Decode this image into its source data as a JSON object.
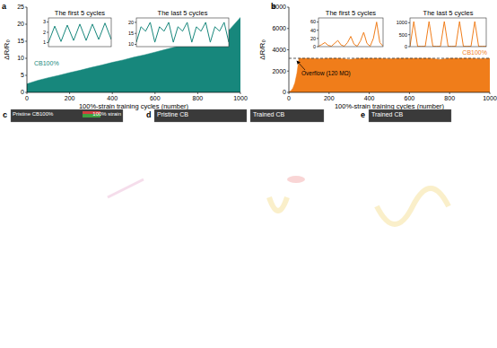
{
  "chart_data": [
    {
      "panel": "a",
      "type": "area",
      "x_label": "100%-strain training cycles (number)",
      "y_label": "ΔR/R₀",
      "series": [
        {
          "name": "CB100%",
          "color": "#17877c",
          "x": [
            0,
            50,
            100,
            150,
            200,
            250,
            300,
            350,
            400,
            450,
            500,
            550,
            600,
            650,
            700,
            750,
            800,
            850,
            900,
            950,
            1000
          ],
          "values": [
            2.5,
            3.5,
            4.3,
            5,
            5.8,
            6.5,
            7.3,
            8,
            8.8,
            9.5,
            10.3,
            11,
            11.8,
            12.6,
            13.4,
            14.2,
            15,
            16,
            17,
            18.5,
            22
          ]
        }
      ],
      "xlim": [
        0,
        1000
      ],
      "xticks": [
        0,
        200,
        400,
        600,
        800,
        1000
      ],
      "ylim": [
        0,
        25
      ],
      "yticks": [
        0,
        5,
        10,
        15,
        20,
        25
      ],
      "legend": "left"
    },
    {
      "type": "line",
      "title": "The first 5 cycles",
      "series": [
        {
          "color": "#17877c",
          "x": [
            0,
            0.5,
            1,
            1.5,
            2,
            2.5,
            3,
            3.5,
            4,
            4.5,
            5
          ],
          "values": [
            1.0,
            2.6,
            1.1,
            2.7,
            1.2,
            2.8,
            1.2,
            2.8,
            1.3,
            2.9,
            1.3
          ]
        }
      ],
      "xlim": [
        0,
        5
      ],
      "ylim": [
        0.6,
        3.4
      ],
      "yticks": [
        1,
        2,
        3
      ],
      "tick_labels": "y"
    },
    {
      "type": "line",
      "title": "The last 5 cycles",
      "series": [
        {
          "color": "#17877c",
          "x": [
            0,
            0.25,
            0.5,
            0.75,
            1,
            1.25,
            1.5,
            1.75,
            2,
            2.25,
            2.5,
            2.75,
            3,
            3.25,
            3.5,
            3.75,
            4,
            4.25,
            4.5,
            4.75,
            5
          ],
          "values": [
            11,
            18,
            16,
            20,
            11,
            18,
            16,
            20,
            11,
            18,
            16,
            20,
            11,
            18,
            16,
            20,
            11,
            18,
            16,
            20,
            11
          ]
        }
      ],
      "xlim": [
        0,
        5
      ],
      "ylim": [
        9,
        22
      ],
      "yticks": [
        10,
        15,
        20
      ],
      "tick_labels": "y"
    },
    {
      "panel": "b",
      "type": "area",
      "x_label": "100%-strain training cycles (number)",
      "y_label": "ΔR/R₀",
      "series": [
        {
          "name": "CB100%",
          "color": "#f07d1a",
          "x": [
            0,
            10,
            20,
            30,
            40,
            50,
            100,
            150,
            200,
            250,
            300,
            350,
            400,
            450,
            500,
            550,
            600,
            650,
            700,
            750,
            800,
            850,
            900,
            950,
            1000
          ],
          "values": [
            50,
            150,
            400,
            900,
            1800,
            3200,
            3200,
            3150,
            3200,
            3200,
            3100,
            3200,
            3200,
            3200,
            3150,
            3200,
            3200,
            3200,
            3200,
            3100,
            3200,
            3200,
            3200,
            3150,
            3200
          ]
        }
      ],
      "xlim": [
        0,
        1000
      ],
      "xticks": [
        0,
        200,
        400,
        600,
        800,
        1000
      ],
      "ylim": [
        0,
        8000
      ],
      "yticks": [
        0,
        2000,
        4000,
        6000,
        8000
      ],
      "legend": "right",
      "annotations": [
        {
          "text": "Overflow (120 MΩ)",
          "y": 3200
        }
      ]
    },
    {
      "type": "line",
      "title": "The first 5 cycles",
      "series": [
        {
          "color": "#f07d1a",
          "x": [
            0,
            0.25,
            0.5,
            0.75,
            1,
            1.25,
            1.5,
            1.75,
            2,
            2.25,
            2.5,
            2.75,
            3,
            3.25,
            3.5,
            3.75,
            4,
            4.25,
            4.5,
            4.75,
            5
          ],
          "values": [
            1,
            5,
            10,
            3,
            1,
            8,
            15,
            4,
            1,
            10,
            25,
            6,
            1,
            14,
            35,
            8,
            1,
            20,
            60,
            10,
            1
          ]
        }
      ],
      "xlim": [
        0,
        5
      ],
      "ylim": [
        0,
        70
      ],
      "yticks": [
        0,
        20,
        40,
        60
      ],
      "tick_labels": "y"
    },
    {
      "type": "line",
      "title": "The last 5 cycles",
      "series": [
        {
          "color": "#f07d1a",
          "x": [
            0,
            0.25,
            0.5,
            0.75,
            1,
            1.25,
            1.5,
            1.75,
            2,
            2.25,
            2.5,
            2.75,
            3,
            3.25,
            3.5,
            3.75,
            4,
            4.25,
            4.5,
            4.75,
            5
          ],
          "values": [
            10,
            1050,
            10,
            10,
            10,
            1050,
            10,
            10,
            10,
            1050,
            10,
            10,
            10,
            1050,
            10,
            10,
            10,
            1050,
            10,
            10,
            10
          ]
        }
      ],
      "xlim": [
        0,
        5
      ],
      "ylim": [
        0,
        1200
      ],
      "yticks": [
        0,
        500,
        1000
      ],
      "tick_labels": "y"
    }
  ],
  "images": [
    {
      "panel": "c",
      "labels": [
        "Pristine CB100%",
        "100% strain"
      ]
    },
    {
      "panel": "d",
      "labels": [
        "Pristine CB",
        "Trained CB"
      ]
    },
    {
      "panel": "e",
      "labels": [
        "Trained CB"
      ]
    }
  ]
}
